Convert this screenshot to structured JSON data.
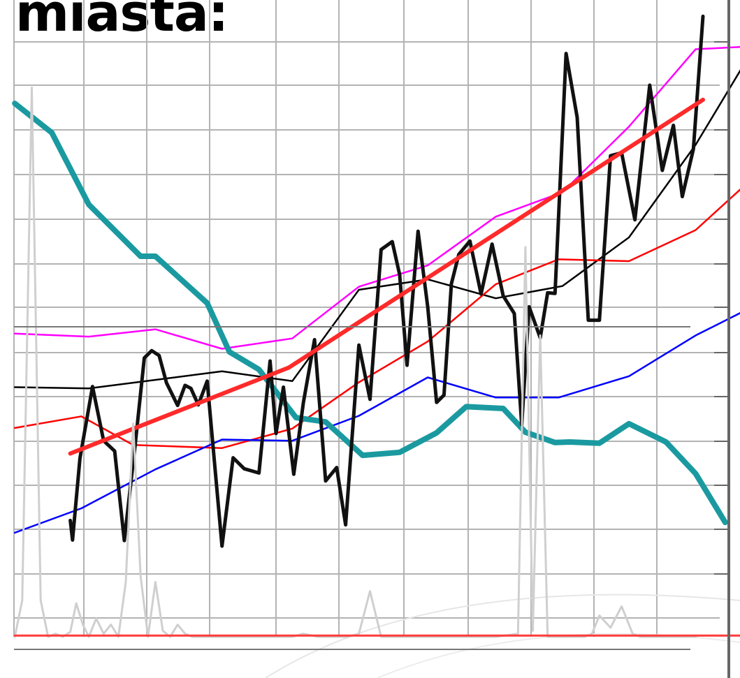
{
  "title": "miasta:",
  "chart_data": {
    "type": "line",
    "title": "miasta:",
    "xlabel": "",
    "ylabel": "",
    "xlim": [
      0,
      1000
    ],
    "ylim": [
      0,
      1000
    ],
    "grid": true,
    "legend": "none",
    "series": [
      {
        "color": "#000000",
        "width": 2.5,
        "x": [
          20,
          120,
          300,
          395,
          485,
          578,
          670,
          760,
          850,
          940,
          1035
        ],
        "y": [
          410,
          408,
          436,
          420,
          570,
          587,
          556,
          576,
          656,
          808,
          1000
        ]
      },
      {
        "color": "#ff00ff",
        "width": 2.5,
        "x": [
          20,
          120,
          210,
          300,
          395,
          485,
          578,
          670,
          760,
          850,
          940,
          1035
        ],
        "y": [
          498,
          493,
          505,
          473,
          490,
          575,
          610,
          690,
          730,
          838,
          965,
          971
        ]
      },
      {
        "color": "#ff0000",
        "width": 2.5,
        "x": [
          20,
          110,
          180,
          300,
          395,
          485,
          578,
          670,
          755,
          850,
          940,
          1035
        ],
        "y": [
          343,
          362,
          315,
          310,
          342,
          418,
          485,
          579,
          620,
          617,
          668,
          773
        ]
      },
      {
        "color": "#0000ff",
        "width": 2.5,
        "x": [
          20,
          110,
          210,
          300,
          395,
          485,
          578,
          670,
          755,
          850,
          940,
          1035
        ],
        "y": [
          171,
          211,
          275,
          324,
          322,
          363,
          426,
          393,
          393,
          428,
          495,
          553
        ]
      },
      {
        "color": "#1a9aa0",
        "width": 8,
        "x": [
          20,
          70,
          120,
          190,
          210,
          280,
          310,
          350,
          400,
          440,
          490,
          540,
          590,
          630,
          680,
          710,
          750,
          770,
          810,
          850,
          900,
          940,
          980
        ],
        "y": [
          876,
          828,
          710,
          625,
          625,
          548,
          468,
          439,
          360,
          353,
          298,
          303,
          335,
          378,
          375,
          336,
          319,
          320,
          318,
          350,
          320,
          268,
          188
        ]
      },
      {
        "color": "#111111",
        "width": 5,
        "x": [
          95,
          98,
          108,
          125,
          140,
          155,
          168,
          183,
          195,
          205,
          215,
          225,
          240,
          250,
          258,
          268,
          280,
          300,
          315,
          330,
          350,
          365,
          373,
          383,
          397,
          410,
          425,
          440,
          455,
          467,
          485,
          500,
          515,
          530,
          540,
          550,
          565,
          578,
          590,
          600,
          610,
          620,
          635,
          650,
          665,
          680,
          695,
          705,
          715,
          730,
          740,
          750,
          765,
          780,
          795,
          810,
          825,
          840,
          858,
          878,
          895,
          910,
          922,
          937,
          950
        ],
        "y": [
          191,
          159,
          293,
          411,
          322,
          305,
          158,
          319,
          458,
          470,
          462,
          417,
          380,
          413,
          408,
          381,
          420,
          149,
          294,
          276,
          269,
          453,
          334,
          410,
          267,
          385,
          488,
          256,
          278,
          184,
          479,
          390,
          636,
          649,
          595,
          446,
          666,
          542,
          385,
          397,
          580,
          628,
          650,
          563,
          645,
          560,
          531,
          348,
          542,
          491,
          565,
          564,
          958,
          853,
          520,
          520,
          790,
          795,
          685,
          906,
          766,
          840,
          723,
          801,
          1019
        ]
      },
      {
        "color": "#ff2a2a",
        "width": 6,
        "x": [
          95,
          390,
          950
        ],
        "y": [
          301,
          442,
          882
        ]
      },
      {
        "color": "#cfcfcf",
        "width": 3,
        "x": [
          20,
          30,
          43,
          55,
          65,
          75,
          85,
          95,
          103,
          112,
          120,
          130,
          140,
          150,
          160,
          170,
          180,
          190,
          200,
          210,
          220,
          230,
          240,
          250,
          260,
          300,
          395,
          410,
          430,
          470,
          485,
          500,
          515,
          578,
          670,
          700,
          710,
          720,
          730,
          740,
          760,
          790,
          800,
          810,
          825,
          840,
          855,
          865,
          880,
          895,
          920,
          940
        ],
        "y": [
          0,
          60,
          902,
          60,
          0,
          5,
          0,
          8,
          55,
          20,
          0,
          30,
          5,
          20,
          0,
          90,
          350,
          100,
          0,
          90,
          10,
          0,
          20,
          5,
          0,
          0,
          0,
          5,
          0,
          0,
          5,
          75,
          0,
          0,
          0,
          5,
          640,
          10,
          495,
          0,
          0,
          0,
          5,
          35,
          15,
          50,
          5,
          0,
          0,
          0,
          0,
          0
        ]
      },
      {
        "color": "#ff3b3b",
        "width": 3,
        "x": [
          20,
          1000
        ],
        "y": [
          2,
          2
        ]
      }
    ]
  }
}
